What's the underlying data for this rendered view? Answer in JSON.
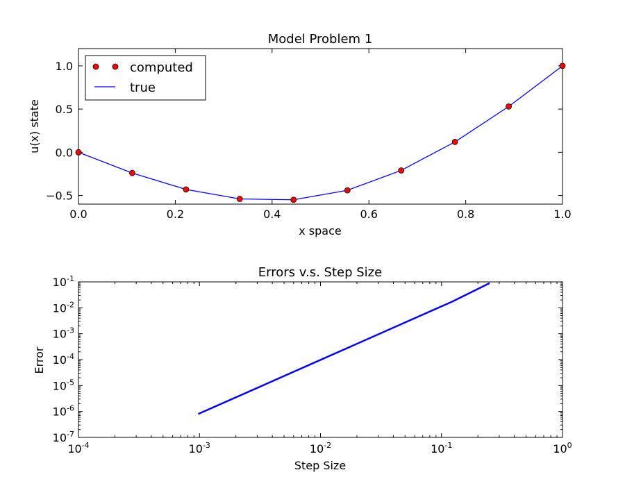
{
  "chart_data": [
    {
      "type": "line",
      "title": "Model Problem 1",
      "xlabel": "x space",
      "ylabel": "u(x) state",
      "xlim": [
        0.0,
        1.0
      ],
      "ylim": [
        -0.6,
        1.2
      ],
      "xticks": [
        0.0,
        0.2,
        0.4,
        0.6,
        0.8,
        1.0
      ],
      "xtick_labels": [
        "0.0",
        "0.2",
        "0.4",
        "0.6",
        "0.8",
        "1.0"
      ],
      "yticks": [
        -0.5,
        0.0,
        0.5,
        1.0
      ],
      "ytick_labels": [
        "−0.5",
        "0.0",
        "0.5",
        "1.0"
      ],
      "legend_position": "top-left",
      "series": [
        {
          "name": "computed",
          "style": "markers",
          "color": "#ff0000",
          "x": [
            0.0,
            0.1111,
            0.2222,
            0.3333,
            0.4444,
            0.5556,
            0.6667,
            0.7778,
            0.8889,
            1.0
          ],
          "y": [
            0.0,
            -0.24,
            -0.43,
            -0.54,
            -0.55,
            -0.44,
            -0.21,
            0.12,
            0.53,
            1.0
          ]
        },
        {
          "name": "true",
          "style": "line",
          "color": "#0000ff",
          "x": [
            0.0,
            0.1111,
            0.2222,
            0.3333,
            0.4444,
            0.5556,
            0.6667,
            0.7778,
            0.8889,
            1.0
          ],
          "y": [
            0.0,
            -0.24,
            -0.43,
            -0.54,
            -0.55,
            -0.44,
            -0.21,
            0.12,
            0.53,
            1.0
          ]
        }
      ]
    },
    {
      "type": "line",
      "title": "Errors v.s. Step Size",
      "xlabel": "Step Size",
      "ylabel": "Error",
      "xscale": "log",
      "yscale": "log",
      "xlim_exp": [
        -4,
        0
      ],
      "ylim_exp": [
        -7,
        -1
      ],
      "x_tick_exponents": [
        "-4",
        "-3",
        "-2",
        "-1",
        "0"
      ],
      "y_tick_exponents": [
        "-1",
        "-2",
        "-3",
        "-4",
        "-5",
        "-6",
        "-7"
      ],
      "tick_base": "10",
      "series": [
        {
          "color": "#0000ff",
          "x": [
            0.000977,
            0.125,
            0.25
          ],
          "y": [
            8e-07,
            0.018,
            0.09
          ]
        }
      ]
    }
  ]
}
